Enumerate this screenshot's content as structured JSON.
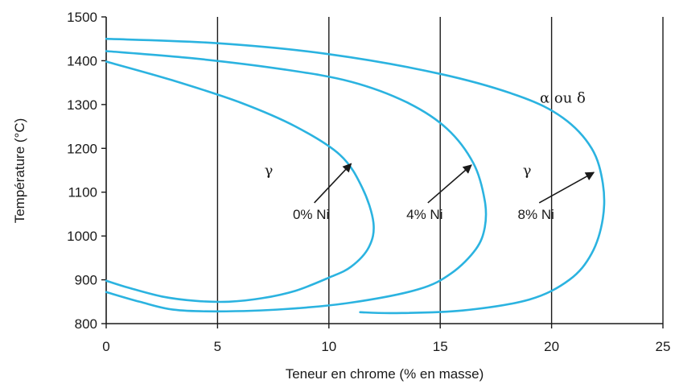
{
  "chart_data": {
    "type": "line",
    "title": "",
    "xlabel": "Teneur en chrome (% en masse)",
    "ylabel": "Température (°C)",
    "xlim": [
      0,
      25
    ],
    "ylim": [
      800,
      1500
    ],
    "xticks": [
      "0",
      "5",
      "10",
      "15",
      "20",
      "25"
    ],
    "yticks": [
      "800",
      "900",
      "1000",
      "1100",
      "1200",
      "1300",
      "1400",
      "1500"
    ],
    "grid": "vertical lines at each x tick",
    "line_color": "#2bb3e0",
    "series": [
      {
        "name": "0% Ni",
        "points": [
          [
            0,
            1398
          ],
          [
            3,
            1355
          ],
          [
            6,
            1305
          ],
          [
            8.5,
            1250
          ],
          [
            10.5,
            1185
          ],
          [
            11.5,
            1110
          ],
          [
            12,
            1030
          ],
          [
            11.8,
            975
          ],
          [
            11,
            930
          ],
          [
            10,
            905
          ],
          [
            8.5,
            875
          ],
          [
            7,
            858
          ],
          [
            5.5,
            850
          ],
          [
            4,
            852
          ],
          [
            2.5,
            862
          ],
          [
            1,
            882
          ],
          [
            0,
            898
          ]
        ]
      },
      {
        "name": "4% Ni",
        "points": [
          [
            0,
            1422
          ],
          [
            4,
            1405
          ],
          [
            8,
            1380
          ],
          [
            11,
            1352
          ],
          [
            13.5,
            1305
          ],
          [
            15.3,
            1245
          ],
          [
            16.5,
            1165
          ],
          [
            17,
            1080
          ],
          [
            17,
            1020
          ],
          [
            16.6,
            970
          ],
          [
            15.5,
            915
          ],
          [
            14,
            878
          ],
          [
            11,
            848
          ],
          [
            8,
            833
          ],
          [
            5,
            828
          ],
          [
            3,
            832
          ],
          [
            1.5,
            850
          ],
          [
            0,
            872
          ]
        ]
      },
      {
        "name": "8% Ni",
        "points": [
          [
            0,
            1450
          ],
          [
            5,
            1440
          ],
          [
            10,
            1415
          ],
          [
            15,
            1370
          ],
          [
            18.5,
            1320
          ],
          [
            20.5,
            1270
          ],
          [
            21.8,
            1200
          ],
          [
            22.3,
            1120
          ],
          [
            22.3,
            1040
          ],
          [
            21.8,
            960
          ],
          [
            20.8,
            900
          ],
          [
            19,
            855
          ],
          [
            16,
            830
          ],
          [
            13,
            824
          ],
          [
            11.4,
            826
          ]
        ]
      }
    ],
    "annotations": [
      {
        "text": "γ",
        "x": 7.3,
        "y": 1150
      },
      {
        "text": "γ",
        "x": 18.9,
        "y": 1150
      },
      {
        "text": "α ou δ",
        "x": 20.5,
        "y": 1315
      },
      {
        "text": "0% Ni",
        "x": 9.2,
        "y": 1050,
        "arrow_to": [
          11,
          1165
        ]
      },
      {
        "text": "4% Ni",
        "x": 14.3,
        "y": 1050,
        "arrow_to": [
          16.4,
          1162
        ]
      },
      {
        "text": "8% Ni",
        "x": 19.3,
        "y": 1050,
        "arrow_to": [
          21.9,
          1145
        ]
      }
    ]
  }
}
